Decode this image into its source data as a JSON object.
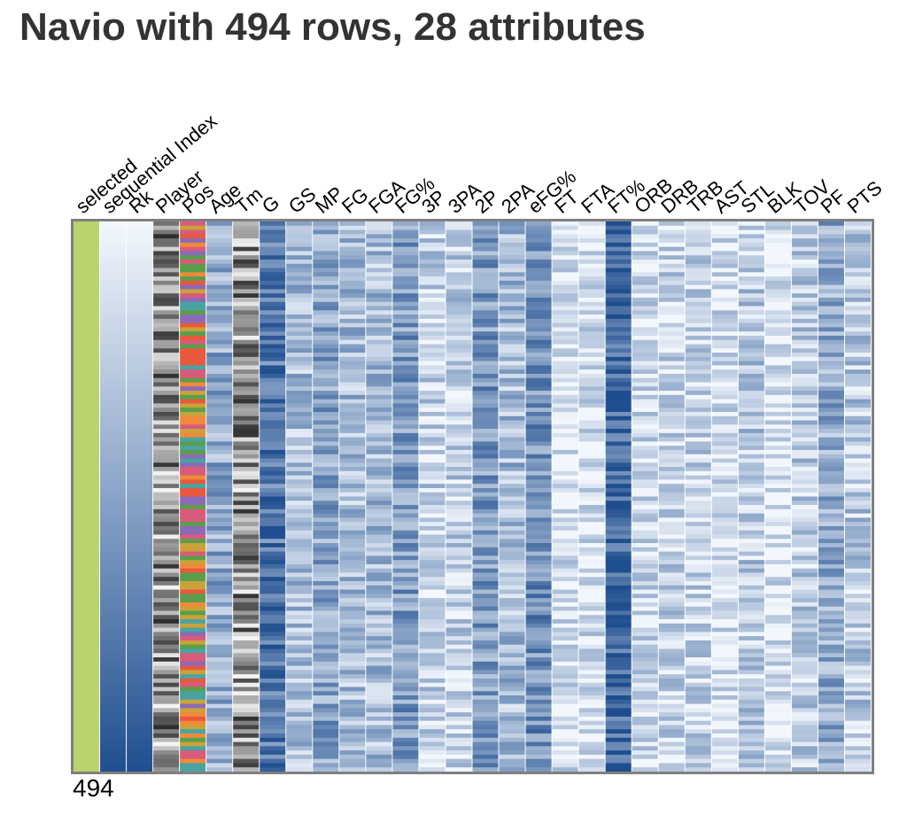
{
  "title": "Navio with 494 rows, 28 attributes",
  "row_count_label": "494",
  "attributes": [
    {
      "name": "selected",
      "type": "boolean",
      "color": "#b9d46f"
    },
    {
      "name": "sequential Index",
      "type": "sequential",
      "color": "#1f4e8f"
    },
    {
      "name": "Rk",
      "type": "sequential",
      "color": "#1f4e8f"
    },
    {
      "name": "Player",
      "type": "categorical-gray"
    },
    {
      "name": "Pos",
      "type": "categorical-color"
    },
    {
      "name": "Age",
      "type": "numeric",
      "level": 0.45
    },
    {
      "name": "Tm",
      "type": "categorical-gray"
    },
    {
      "name": "G",
      "type": "numeric",
      "level": 0.75
    },
    {
      "name": "GS",
      "type": "numeric",
      "level": 0.35
    },
    {
      "name": "MP",
      "type": "numeric",
      "level": 0.5
    },
    {
      "name": "FG",
      "type": "numeric",
      "level": 0.35
    },
    {
      "name": "FGA",
      "type": "numeric",
      "level": 0.35
    },
    {
      "name": "FG%",
      "type": "numeric",
      "level": 0.55
    },
    {
      "name": "3P",
      "type": "numeric",
      "level": 0.2
    },
    {
      "name": "3PA",
      "type": "numeric",
      "level": 0.22
    },
    {
      "name": "2P",
      "type": "numeric",
      "level": 0.55
    },
    {
      "name": "2PA",
      "type": "numeric",
      "level": 0.35
    },
    {
      "name": "eFG%",
      "type": "numeric",
      "level": 0.6
    },
    {
      "name": "FT",
      "type": "numeric",
      "level": 0.12
    },
    {
      "name": "FTA",
      "type": "numeric",
      "level": 0.12
    },
    {
      "name": "FT%",
      "type": "numeric",
      "level": 0.85
    },
    {
      "name": "ORB",
      "type": "numeric",
      "level": 0.15
    },
    {
      "name": "DRB",
      "type": "numeric",
      "level": 0.2
    },
    {
      "name": "TRB",
      "type": "numeric",
      "level": 0.2
    },
    {
      "name": "AST",
      "type": "numeric",
      "level": 0.12
    },
    {
      "name": "STL",
      "type": "numeric",
      "level": 0.25
    },
    {
      "name": "BLK",
      "type": "numeric",
      "level": 0.1
    },
    {
      "name": "TOV",
      "type": "numeric",
      "level": 0.25
    },
    {
      "name": "PF",
      "type": "numeric",
      "level": 0.45
    },
    {
      "name": "PTS",
      "type": "numeric",
      "level": 0.25
    }
  ],
  "colors": {
    "selected": "#b9d46f",
    "blue_light": "#f2f7fd",
    "blue_dark": "#1f4e8f",
    "frame": "#808080",
    "pos_palette": [
      "#e8593d",
      "#f08a3a",
      "#5a9e4b",
      "#8a6bb5",
      "#d95b7a",
      "#4aa3a0",
      "#c9a23a"
    ]
  }
}
